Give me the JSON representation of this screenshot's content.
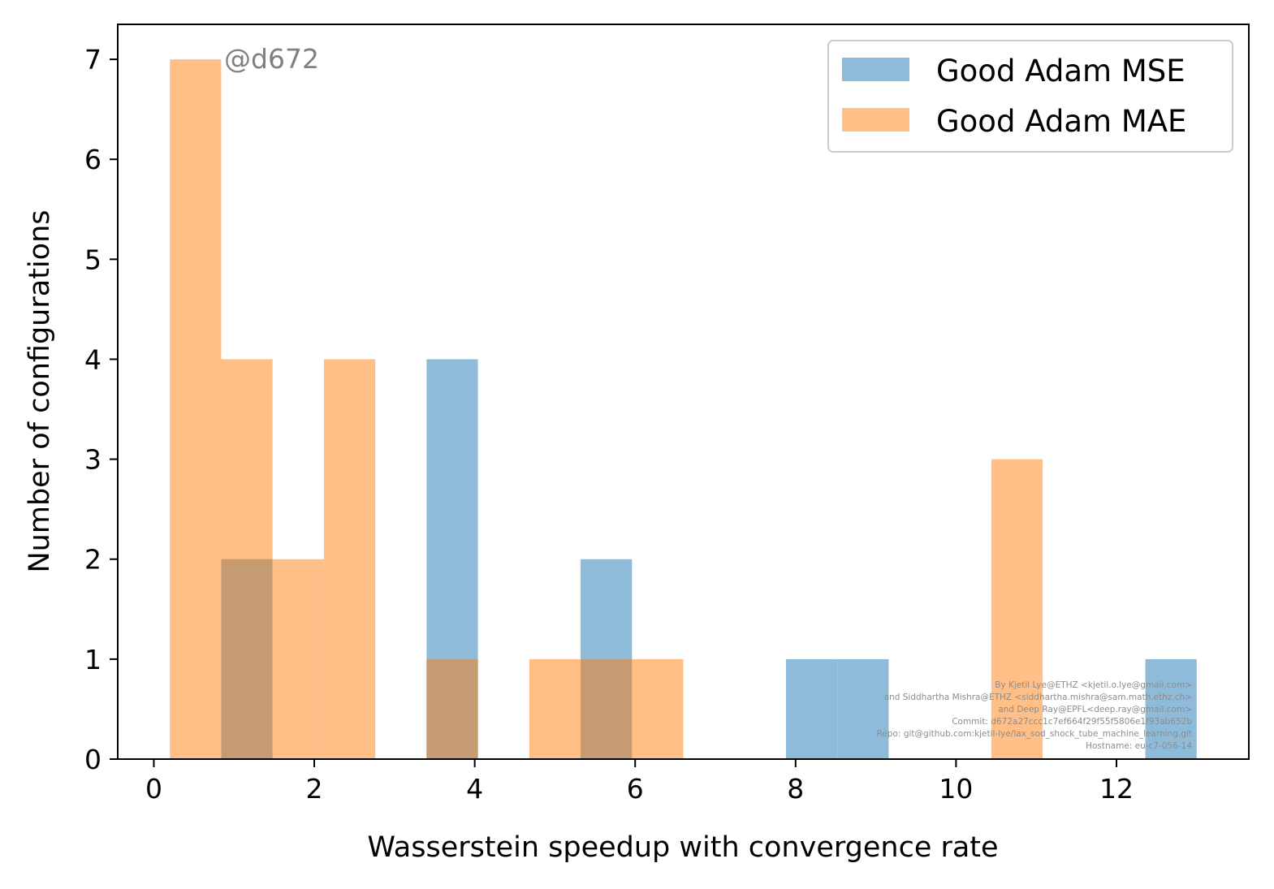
{
  "chart_data": {
    "type": "bar",
    "subtype": "histogram",
    "xlabel": "Wasserstein speedup with convergence rate",
    "ylabel": "Number of configurations",
    "xlim": [
      -0.45,
      13.65
    ],
    "ylim": [
      0,
      7.35
    ],
    "xticks": [
      0,
      2,
      4,
      6,
      8,
      10,
      12
    ],
    "yticks": [
      0,
      1,
      2,
      3,
      4,
      5,
      6,
      7
    ],
    "grid": false,
    "legend_position": "top-right",
    "overlap_color": "#c69b71",
    "series": [
      {
        "name": "Good Adam MSE",
        "color": "#8fbbda",
        "bins": [
          {
            "x0": 0.84,
            "x1": 1.48,
            "count": 2
          },
          {
            "x0": 3.4,
            "x1": 4.04,
            "count": 4
          },
          {
            "x0": 5.32,
            "x1": 5.96,
            "count": 2
          },
          {
            "x0": 7.88,
            "x1": 8.52,
            "count": 1
          },
          {
            "x0": 8.52,
            "x1": 9.16,
            "count": 1
          },
          {
            "x0": 12.36,
            "x1": 13.0,
            "count": 1
          }
        ]
      },
      {
        "name": "Good Adam MAE",
        "color": "#ffbf86",
        "bins": [
          {
            "x0": 0.2,
            "x1": 0.84,
            "count": 7
          },
          {
            "x0": 0.84,
            "x1": 1.48,
            "count": 4
          },
          {
            "x0": 1.48,
            "x1": 2.12,
            "count": 2
          },
          {
            "x0": 2.12,
            "x1": 2.76,
            "count": 4
          },
          {
            "x0": 3.4,
            "x1": 4.04,
            "count": 1
          },
          {
            "x0": 4.68,
            "x1": 5.32,
            "count": 1
          },
          {
            "x0": 5.32,
            "x1": 5.96,
            "count": 1
          },
          {
            "x0": 5.96,
            "x1": 6.6,
            "count": 1
          },
          {
            "x0": 10.44,
            "x1": 11.08,
            "count": 3
          }
        ]
      }
    ],
    "annotations": {
      "watermark": "@d672",
      "credits": [
        "By Kjetil Lye@ETHZ <kjetil.o.lye@gmail.com>",
        "and Siddhartha Mishra@ETHZ <siddhartha.mishra@sam.math.ethz.ch>",
        "and Deep Ray@EPFL<deep.ray@gmail.com>",
        "Commit: d672a27ccc1c7ef664f29f55f5806e1f93ab652b",
        "Repo: git@github.com:kjetil-lye/lax_sod_shock_tube_machine_learning.git",
        "Hostname: eu-c7-056-14"
      ]
    }
  }
}
